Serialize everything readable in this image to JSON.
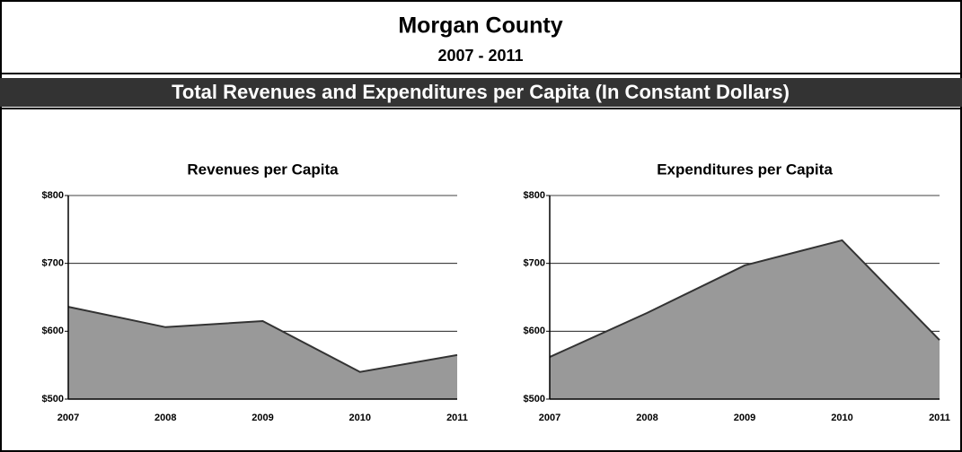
{
  "header": {
    "title": "Morgan County",
    "subtitle": "2007 - 2011",
    "banner": "Total Revenues and Expenditures per Capita (In Constant Dollars)"
  },
  "chart_data": [
    {
      "type": "area",
      "title": "Revenues per Capita",
      "categories": [
        "2007",
        "2008",
        "2009",
        "2010",
        "2011"
      ],
      "values": [
        636,
        606,
        615,
        540,
        565
      ],
      "color": "#999999",
      "ylim": [
        500,
        800
      ],
      "yticks": [
        {
          "value": 500,
          "label": "$500"
        },
        {
          "value": 600,
          "label": "$600"
        },
        {
          "value": 700,
          "label": "$700"
        },
        {
          "value": 800,
          "label": "$800"
        }
      ],
      "grid": true
    },
    {
      "type": "area",
      "title": "Expenditures per Capita",
      "categories": [
        "2007",
        "2008",
        "2009",
        "2010",
        "2011"
      ],
      "values": [
        562,
        627,
        697,
        734,
        587
      ],
      "color": "#999999",
      "ylim": [
        500,
        800
      ],
      "yticks": [
        {
          "value": 500,
          "label": "$500"
        },
        {
          "value": 600,
          "label": "$600"
        },
        {
          "value": 700,
          "label": "$700"
        },
        {
          "value": 800,
          "label": "$800"
        }
      ],
      "grid": true
    }
  ]
}
